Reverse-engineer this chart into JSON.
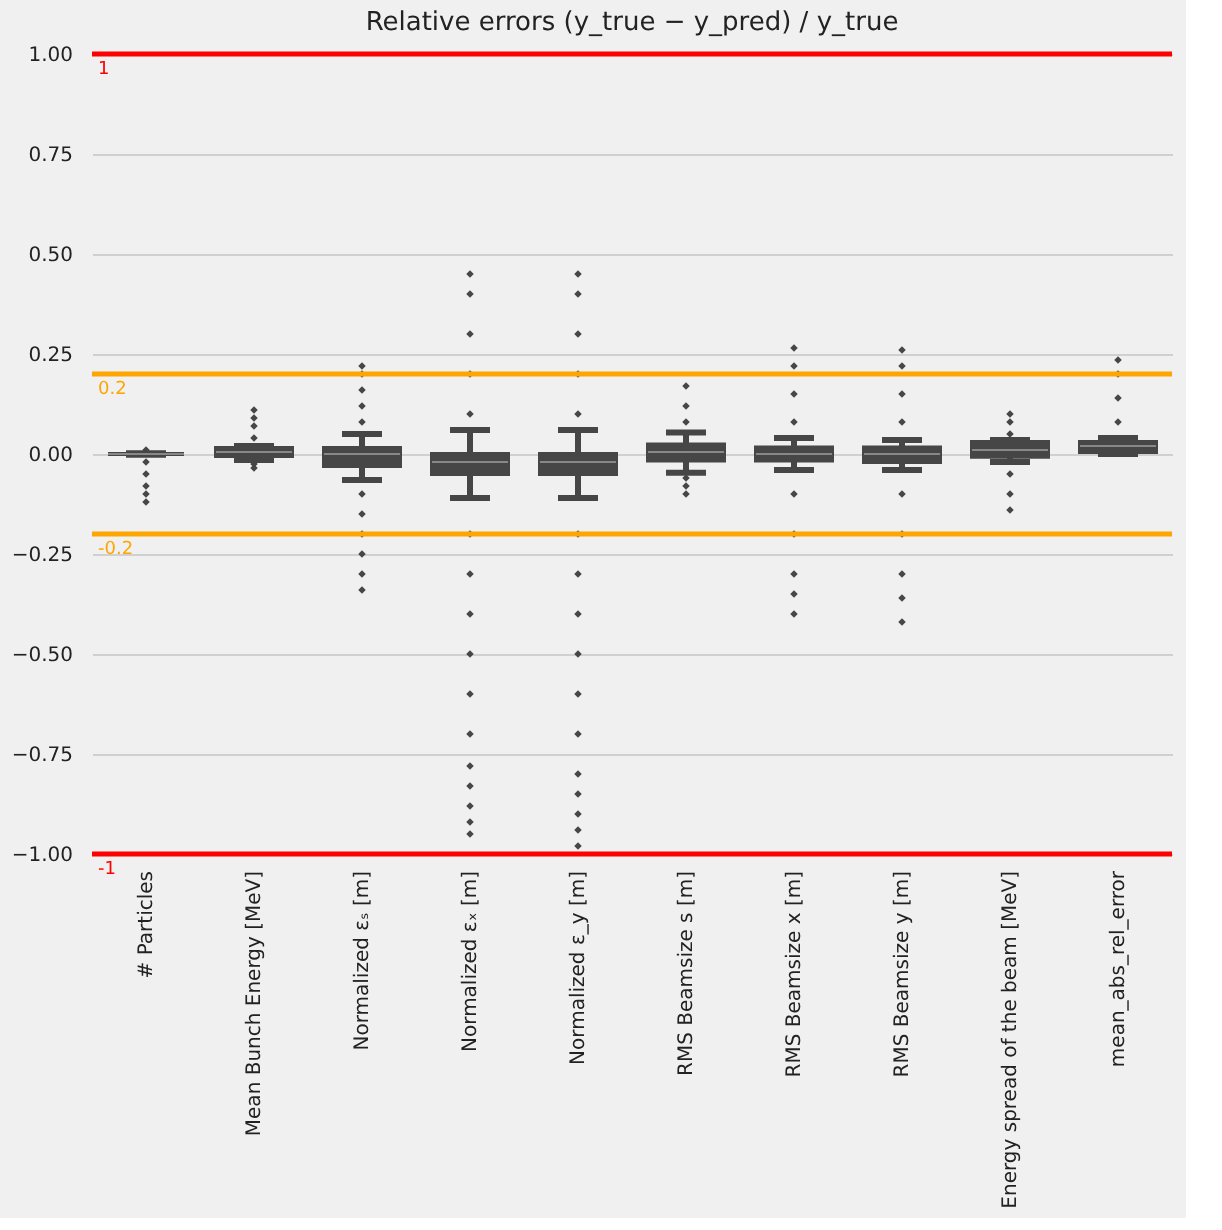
{
  "chart_data": {
    "type": "box",
    "title": "Relative errors (y_true − y_pred) / y_true",
    "categories": [
      "# Particles",
      "Mean Bunch Energy [MeV]",
      "Normalized εₛ [m]",
      "Normalized εₓ [m]",
      "Normalized ε_y [m]",
      "RMS Beamsize s [m]",
      "RMS Beamsize x [m]",
      "RMS Beamsize y [m]",
      "Energy spread of the beam [MeV]",
      "mean_abs_rel_error"
    ],
    "color": "#464646",
    "boxes": [
      {
        "low": -0.002,
        "q1": 0,
        "median": 0,
        "q3": 0,
        "high": 0.002,
        "outliers": [
          0.01,
          -0.02,
          -0.05,
          -0.08,
          -0.1,
          -0.12
        ]
      },
      {
        "low": -0.015,
        "q1": -0.005,
        "median": 0.005,
        "q3": 0.015,
        "high": 0.02,
        "outliers": [
          0.04,
          0.07,
          0.09,
          0.11,
          -0.025,
          -0.035
        ]
      },
      {
        "low": -0.065,
        "q1": -0.03,
        "median": 0,
        "q3": 0.015,
        "high": 0.05,
        "outliers": [
          0.08,
          0.12,
          0.16,
          0.2,
          0.22,
          -0.1,
          -0.15,
          -0.2,
          -0.25,
          -0.3,
          -0.34
        ]
      },
      {
        "low": -0.11,
        "q1": -0.05,
        "median": -0.02,
        "q3": 0,
        "high": 0.06,
        "outliers": [
          0.1,
          0.2,
          0.3,
          0.4,
          0.45,
          -0.2,
          -0.3,
          -0.4,
          -0.5,
          -0.6,
          -0.7,
          -0.78,
          -0.83,
          -0.88,
          -0.92,
          -0.95
        ]
      },
      {
        "low": -0.11,
        "q1": -0.05,
        "median": -0.02,
        "q3": 0,
        "high": 0.06,
        "outliers": [
          0.1,
          0.2,
          0.3,
          0.4,
          0.45,
          -0.2,
          -0.3,
          -0.4,
          -0.5,
          -0.6,
          -0.7,
          -0.8,
          -0.85,
          -0.9,
          -0.94,
          -0.98
        ]
      },
      {
        "low": -0.047,
        "q1": -0.016,
        "median": 0.005,
        "q3": 0.024,
        "high": 0.054,
        "outliers": [
          0.08,
          0.12,
          0.17,
          -0.06,
          -0.08,
          -0.1
        ]
      },
      {
        "low": -0.04,
        "q1": -0.016,
        "median": 0,
        "q3": 0.016,
        "high": 0.04,
        "outliers": [
          0.08,
          0.15,
          0.22,
          0.265,
          -0.1,
          -0.2,
          -0.3,
          -0.35,
          -0.4
        ]
      },
      {
        "low": -0.04,
        "q1": -0.02,
        "median": 0,
        "q3": 0.016,
        "high": 0.035,
        "outliers": [
          0.08,
          0.15,
          0.22,
          0.26,
          -0.1,
          -0.2,
          -0.3,
          -0.36,
          -0.42
        ]
      },
      {
        "low": -0.02,
        "q1": -0.007,
        "median": 0.01,
        "q3": 0.03,
        "high": 0.035,
        "outliers": [
          0.05,
          0.08,
          0.1,
          -0.05,
          -0.1,
          -0.14
        ]
      },
      {
        "low": 0,
        "q1": 0.005,
        "median": 0.02,
        "q3": 0.03,
        "high": 0.04,
        "outliers": [
          0.08,
          0.14,
          0.2,
          0.235
        ]
      }
    ],
    "ylim": [
      -1,
      1
    ],
    "yticks": [
      {
        "value": -1,
        "label": "−1.00"
      },
      {
        "value": -0.75,
        "label": "−0.75"
      },
      {
        "value": -0.5,
        "label": "−0.50"
      },
      {
        "value": -0.25,
        "label": "−0.25"
      },
      {
        "value": 0,
        "label": "0.00"
      },
      {
        "value": 0.25,
        "label": "0.25"
      },
      {
        "value": 0.5,
        "label": "0.50"
      },
      {
        "value": 0.75,
        "label": "0.75"
      },
      {
        "value": 1,
        "label": "1.00"
      }
    ],
    "grid": "y",
    "legend": false,
    "ref_lines": [
      {
        "axis": "y",
        "value": 1,
        "label": "1",
        "color": "#ff0000"
      },
      {
        "axis": "y",
        "value": -1,
        "label": "-1",
        "color": "#ff0000"
      },
      {
        "axis": "y",
        "value": 0.2,
        "label": "0.2",
        "color": "#ffa500"
      },
      {
        "axis": "y",
        "value": -0.2,
        "label": "-0.2",
        "color": "#ffa500"
      }
    ]
  }
}
